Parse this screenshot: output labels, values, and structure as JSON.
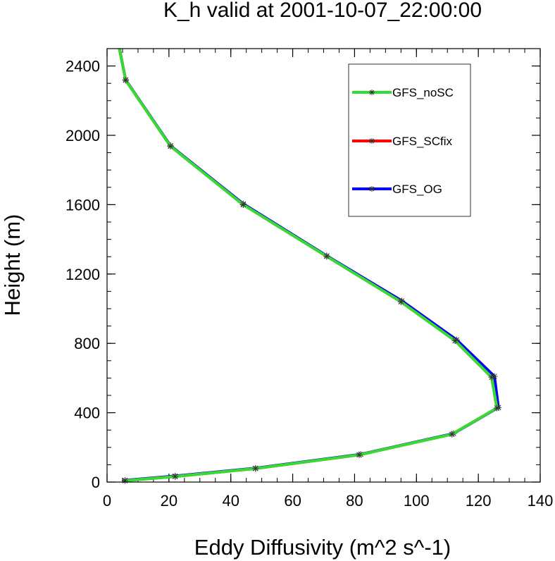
{
  "chart_data": {
    "type": "line",
    "title": "K_h valid at 2001-10-07_22:00:00",
    "xlabel": "Eddy Diffusivity (m^2 s^-1)",
    "ylabel": "Height (m)",
    "xlim": [
      0,
      140
    ],
    "ylim": [
      0,
      2500
    ],
    "xticks": [
      0,
      20,
      40,
      60,
      80,
      100,
      120,
      140
    ],
    "yticks": [
      0,
      400,
      800,
      1200,
      1600,
      2000,
      2400
    ],
    "x_minor_step": 5,
    "y_minor_step": 100,
    "grid": false,
    "legend_position": "top-right",
    "series": [
      {
        "name": "GFS_OG",
        "color": "#0000ff",
        "x": [
          5.8,
          22,
          48,
          82,
          112,
          126.5,
          125.2,
          113,
          95.3,
          71,
          44,
          20.5,
          6,
          4
        ],
        "y": [
          10,
          35,
          80,
          160,
          280,
          430,
          610,
          820,
          1045,
          1305,
          1605,
          1940,
          2320,
          2500
        ]
      },
      {
        "name": "GFS_SCfix",
        "color": "#ff0000",
        "x": [
          5.8,
          22,
          48,
          81.5,
          111.5,
          126,
          124.3,
          112.5,
          95,
          71,
          44,
          20.5,
          6,
          4
        ],
        "y": [
          8,
          32,
          78,
          157,
          276,
          427,
          605,
          815,
          1040,
          1302,
          1600,
          1937,
          2318,
          2500
        ]
      },
      {
        "name": "GFS_noSC",
        "color": "#32dc32",
        "x": [
          5.8,
          22,
          48,
          81.5,
          111.5,
          126,
          124.3,
          112.5,
          95,
          71,
          44,
          20.5,
          6,
          4
        ],
        "y": [
          8,
          32,
          78,
          157,
          276,
          427,
          605,
          815,
          1040,
          1302,
          1600,
          1937,
          2318,
          2500
        ]
      }
    ],
    "legend_order": [
      "GFS_noSC",
      "GFS_SCfix",
      "GFS_OG"
    ]
  }
}
